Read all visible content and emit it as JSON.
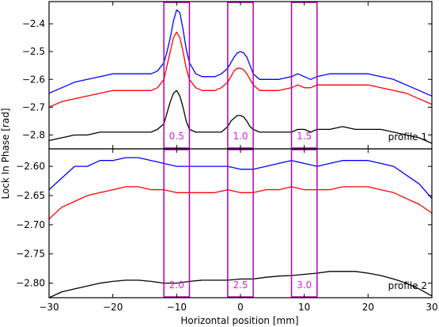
{
  "chart_data": {
    "type": "line",
    "xlabel": "Horizontal position [mm]",
    "ylabel": "Lock In Phase [rad]",
    "xlim": [
      -30,
      30
    ],
    "x_ticks": [
      -30,
      -20,
      -10,
      0,
      10,
      20,
      30
    ],
    "x_tick_labels": [
      "−30",
      "−20",
      "−10",
      "0",
      "10",
      "20",
      "30"
    ],
    "grid": false,
    "legend": "none",
    "box_color": "#b000b0",
    "box_label_color": "#e020e0",
    "panels": [
      {
        "label": "profile 1",
        "ylim": [
          -2.85,
          -2.32
        ],
        "y_ticks": [
          -2.8,
          -2.7,
          -2.6,
          -2.5,
          -2.4
        ],
        "y_tick_labels": [
          "−2.8",
          "−2.7",
          "−2.6",
          "−2.5",
          "−2.4"
        ],
        "boxes": [
          {
            "label": "0.5",
            "x_range": [
              -12,
              -8
            ]
          },
          {
            "label": "1.0",
            "x_range": [
              -2,
              2
            ]
          },
          {
            "label": "1.5",
            "x_range": [
              8,
              12
            ]
          }
        ],
        "series": [
          {
            "color": "#0000ff",
            "x": [
              -30,
              -28,
              -26,
              -24,
              -22,
              -20,
              -18,
              -16,
              -14,
              -13,
              -12,
              -11.5,
              -11,
              -10.5,
              -10,
              -9.5,
              -9,
              -8.5,
              -8,
              -7,
              -6,
              -4,
              -3,
              -2,
              -1.5,
              -1,
              -0.5,
              0,
              0.5,
              1,
              1.5,
              2,
              3,
              4,
              6,
              8,
              9,
              10,
              11,
              12,
              14,
              16,
              18,
              20,
              22,
              24,
              26,
              28,
              30
            ],
            "values": [
              -2.65,
              -2.63,
              -2.61,
              -2.6,
              -2.59,
              -2.58,
              -2.58,
              -2.58,
              -2.58,
              -2.57,
              -2.54,
              -2.5,
              -2.45,
              -2.39,
              -2.35,
              -2.36,
              -2.42,
              -2.49,
              -2.54,
              -2.58,
              -2.59,
              -2.59,
              -2.58,
              -2.56,
              -2.54,
              -2.52,
              -2.505,
              -2.5,
              -2.505,
              -2.52,
              -2.55,
              -2.58,
              -2.6,
              -2.6,
              -2.6,
              -2.59,
              -2.58,
              -2.59,
              -2.6,
              -2.59,
              -2.58,
              -2.58,
              -2.58,
              -2.58,
              -2.59,
              -2.6,
              -2.62,
              -2.64,
              -2.66
            ]
          },
          {
            "color": "#ff0000",
            "x": [
              -30,
              -28,
              -26,
              -24,
              -22,
              -20,
              -18,
              -16,
              -14,
              -13,
              -12,
              -11.5,
              -11,
              -10.5,
              -10,
              -9.5,
              -9,
              -8.5,
              -8,
              -7,
              -6,
              -4,
              -3,
              -2,
              -1.5,
              -1,
              -0.5,
              0,
              0.5,
              1,
              1.5,
              2,
              3,
              4,
              6,
              8,
              9,
              10,
              11,
              12,
              14,
              16,
              18,
              20,
              22,
              24,
              26,
              28,
              30
            ],
            "values": [
              -2.7,
              -2.68,
              -2.67,
              -2.66,
              -2.65,
              -2.64,
              -2.64,
              -2.64,
              -2.64,
              -2.63,
              -2.6,
              -2.55,
              -2.5,
              -2.45,
              -2.43,
              -2.45,
              -2.5,
              -2.56,
              -2.6,
              -2.63,
              -2.64,
              -2.64,
              -2.63,
              -2.61,
              -2.59,
              -2.57,
              -2.56,
              -2.56,
              -2.565,
              -2.58,
              -2.6,
              -2.62,
              -2.64,
              -2.64,
              -2.64,
              -2.63,
              -2.62,
              -2.63,
              -2.63,
              -2.62,
              -2.62,
              -2.62,
              -2.62,
              -2.62,
              -2.63,
              -2.64,
              -2.65,
              -2.67,
              -2.69
            ]
          },
          {
            "color": "#000000",
            "x": [
              -30,
              -28,
              -26,
              -24,
              -22,
              -20,
              -18,
              -16,
              -14,
              -13,
              -12,
              -11.5,
              -11,
              -10.5,
              -10,
              -9.5,
              -9,
              -8.5,
              -8,
              -7,
              -6,
              -4,
              -3,
              -2,
              -1.5,
              -1,
              -0.5,
              0,
              0.5,
              1,
              1.5,
              2,
              3,
              4,
              6,
              8,
              9,
              10,
              11,
              12,
              14,
              16,
              18,
              20,
              22,
              24,
              26,
              28,
              30
            ],
            "values": [
              -2.82,
              -2.81,
              -2.8,
              -2.8,
              -2.79,
              -2.79,
              -2.79,
              -2.79,
              -2.79,
              -2.78,
              -2.76,
              -2.72,
              -2.68,
              -2.65,
              -2.64,
              -2.66,
              -2.7,
              -2.75,
              -2.78,
              -2.79,
              -2.79,
              -2.79,
              -2.79,
              -2.77,
              -2.75,
              -2.74,
              -2.73,
              -2.73,
              -2.735,
              -2.75,
              -2.77,
              -2.78,
              -2.79,
              -2.79,
              -2.79,
              -2.79,
              -2.78,
              -2.78,
              -2.79,
              -2.78,
              -2.78,
              -2.77,
              -2.78,
              -2.78,
              -2.78,
              -2.79,
              -2.8,
              -2.81,
              -2.83
            ]
          }
        ]
      },
      {
        "label": "profile 2",
        "ylim": [
          -2.825,
          -2.57
        ],
        "y_ticks": [
          -2.8,
          -2.75,
          -2.7,
          -2.65,
          -2.6
        ],
        "y_tick_labels": [
          "−2.80",
          "−2.75",
          "−2.70",
          "−2.65",
          "−2.60"
        ],
        "boxes": [
          {
            "label": "2.0",
            "x_range": [
              -12,
              -8
            ]
          },
          {
            "label": "2.5",
            "x_range": [
              -2,
              2
            ]
          },
          {
            "label": "3.0",
            "x_range": [
              8,
              12
            ]
          }
        ],
        "series": [
          {
            "color": "#0000ff",
            "x": [
              -30,
              -28,
              -26,
              -24,
              -22,
              -20,
              -18,
              -16,
              -14,
              -12,
              -10,
              -8,
              -6,
              -4,
              -2,
              0,
              2,
              4,
              6,
              8,
              10,
              12,
              14,
              16,
              18,
              20,
              22,
              24,
              26,
              28,
              30
            ],
            "values": [
              -2.64,
              -2.62,
              -2.6,
              -2.6,
              -2.59,
              -2.59,
              -2.585,
              -2.585,
              -2.59,
              -2.595,
              -2.6,
              -2.6,
              -2.6,
              -2.6,
              -2.6,
              -2.605,
              -2.605,
              -2.6,
              -2.595,
              -2.59,
              -2.595,
              -2.6,
              -2.595,
              -2.59,
              -2.59,
              -2.59,
              -2.595,
              -2.6,
              -2.615,
              -2.63,
              -2.655
            ]
          },
          {
            "color": "#ff0000",
            "x": [
              -30,
              -28,
              -26,
              -24,
              -22,
              -20,
              -18,
              -16,
              -14,
              -12,
              -10,
              -8,
              -6,
              -4,
              -2,
              0,
              2,
              4,
              6,
              8,
              10,
              12,
              14,
              16,
              18,
              20,
              22,
              24,
              26,
              28,
              30
            ],
            "values": [
              -2.69,
              -2.67,
              -2.66,
              -2.65,
              -2.645,
              -2.64,
              -2.635,
              -2.635,
              -2.64,
              -2.64,
              -2.645,
              -2.645,
              -2.645,
              -2.645,
              -2.64,
              -2.645,
              -2.645,
              -2.64,
              -2.64,
              -2.635,
              -2.64,
              -2.64,
              -2.64,
              -2.635,
              -2.635,
              -2.635,
              -2.64,
              -2.645,
              -2.655,
              -2.665,
              -2.68
            ]
          },
          {
            "color": "#000000",
            "x": [
              -30,
              -28,
              -26,
              -24,
              -22,
              -20,
              -18,
              -16,
              -14,
              -12,
              -10,
              -8,
              -6,
              -4,
              -2,
              0,
              2,
              4,
              6,
              8,
              10,
              12,
              14,
              16,
              18,
              20,
              22,
              24,
              26,
              28,
              30
            ],
            "values": [
              -2.825,
              -2.815,
              -2.81,
              -2.805,
              -2.8,
              -2.797,
              -2.795,
              -2.795,
              -2.797,
              -2.8,
              -2.8,
              -2.797,
              -2.795,
              -2.795,
              -2.795,
              -2.793,
              -2.793,
              -2.79,
              -2.788,
              -2.787,
              -2.785,
              -2.783,
              -2.78,
              -2.78,
              -2.78,
              -2.783,
              -2.787,
              -2.793,
              -2.8,
              -2.81,
              -2.822
            ]
          }
        ]
      }
    ]
  }
}
